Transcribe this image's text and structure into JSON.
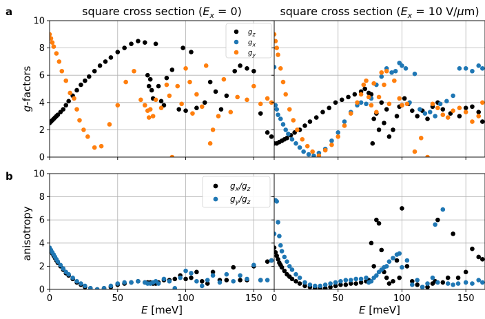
{
  "panel_labels": {
    "a": "a",
    "b": "b"
  },
  "titles": {
    "left": "square cross section (E_x = 0)",
    "right": "square cross section (E_x = 10 V/μm)"
  },
  "ylabels": {
    "top": "g-factors",
    "bottom": "anisotropy"
  },
  "xlabel": "E [meV]",
  "x_ticks": [
    "0",
    "50",
    "100",
    "150"
  ],
  "y_ticks_top": [
    "0",
    "2",
    "4",
    "6",
    "8",
    "10"
  ],
  "y_ticks_bottom": [
    "0",
    "2",
    "4",
    "6",
    "8",
    "10"
  ],
  "legend_top": [
    "g_z",
    "g_x",
    "g_y"
  ],
  "legend_bottom": [
    "g_x/g_z",
    "g_y/g_z"
  ],
  "colors": {
    "g_z": "#000000",
    "g_x": "#1f77b4",
    "g_y": "#ff7f0e",
    "ratio_x": "#000000",
    "ratio_y": "#1f77b4"
  },
  "chart_data": [
    {
      "type": "scatter",
      "title": "square cross section (E_x = 0)",
      "xlabel": "E [meV]",
      "ylabel": "g-factors",
      "xlim": [
        0,
        165
      ],
      "ylim": [
        0,
        10
      ],
      "grid": true,
      "legend": "top-right",
      "series": [
        {
          "name": "g_z",
          "color": "#000000",
          "x": [
            0,
            1,
            2,
            3,
            4,
            5,
            6,
            8,
            10,
            12,
            14,
            17,
            20,
            23,
            26,
            29,
            33,
            37,
            41,
            45,
            50,
            55,
            60,
            65,
            70,
            72,
            73,
            74,
            75,
            76,
            78,
            80,
            82,
            84,
            86,
            90,
            95,
            98,
            100,
            104,
            108,
            114,
            118,
            122,
            126,
            130,
            136,
            140,
            145,
            150,
            155,
            160,
            163
          ],
          "y": [
            2.5,
            2.6,
            2.7,
            2.8,
            2.9,
            3.0,
            3.1,
            3.3,
            3.5,
            3.8,
            4.1,
            4.5,
            4.9,
            5.3,
            5.6,
            5.9,
            6.3,
            6.7,
            7.0,
            7.3,
            7.7,
            8.0,
            8.3,
            8.5,
            8.4,
            6.0,
            5.2,
            5.7,
            4.9,
            4.3,
            8.3,
            5.2,
            4.1,
            3.8,
            5.8,
            6.4,
            3.5,
            8.0,
            3.4,
            7.7,
            3.6,
            4.0,
            5.5,
            4.8,
            3.5,
            4.5,
            6.3,
            6.7,
            6.5,
            6.3,
            3.2,
            1.8,
            1.5
          ]
        },
        {
          "name": "g_y",
          "color": "#ff7f0e",
          "x": [
            0,
            1,
            2,
            3,
            5,
            7,
            9,
            12,
            15,
            18,
            20,
            22,
            25,
            28,
            33,
            38,
            44,
            50,
            56,
            62,
            67,
            70,
            72,
            73,
            74,
            76,
            78,
            82,
            86,
            88,
            90,
            94,
            97,
            100,
            103,
            105,
            108,
            112,
            115,
            118,
            120,
            124,
            128,
            133,
            138,
            145,
            150,
            155,
            160,
            163
          ],
          "y": [
            9.0,
            8.7,
            8.4,
            8.1,
            7.6,
            7.0,
            6.3,
            5.6,
            4.7,
            4.3,
            3.5,
            2.7,
            2.0,
            1.5,
            0.7,
            0.8,
            2.4,
            3.8,
            5.5,
            6.3,
            4.2,
            3.8,
            3.4,
            2.9,
            3.5,
            3.0,
            4.2,
            3.6,
            5.3,
            4.5,
            0.0,
            5.2,
            3.9,
            6.5,
            5.5,
            3.2,
            4.6,
            3.7,
            6.7,
            1.0,
            2.0,
            3.0,
            5.7,
            3.3,
            4.4,
            4.2,
            5.2,
            3.9,
            4.3,
            4.0
          ]
        }
      ]
    },
    {
      "type": "scatter",
      "title": "square cross section (E_x = 10 V/μm)",
      "xlabel": "E [meV]",
      "ylabel": "",
      "xlim": [
        0,
        165
      ],
      "ylim": [
        0,
        10
      ],
      "grid": true,
      "series": [
        {
          "name": "g_z",
          "color": "#000000",
          "x": [
            0,
            2,
            4,
            6,
            8,
            10,
            13,
            16,
            20,
            24,
            28,
            33,
            38,
            43,
            48,
            53,
            58,
            63,
            68,
            71,
            74,
            76,
            77,
            78,
            80,
            82,
            84,
            86,
            88,
            90,
            93,
            96,
            98,
            100,
            102,
            105,
            108,
            112,
            116,
            120,
            124,
            128,
            132,
            138,
            145,
            150,
            155,
            160,
            163
          ],
          "y": [
            1.0,
            1.0,
            1.1,
            1.2,
            1.3,
            1.4,
            1.6,
            1.8,
            2.0,
            2.3,
            2.6,
            2.9,
            3.3,
            3.6,
            4.0,
            4.2,
            4.4,
            4.6,
            4.8,
            5.0,
            4.7,
            4.6,
            1.0,
            2.8,
            3.2,
            2.0,
            4.0,
            2.5,
            3.5,
            1.5,
            2.0,
            3.0,
            3.7,
            3.8,
            4.3,
            3.9,
            3.4,
            3.0,
            3.4,
            2.8,
            3.7,
            4.0,
            3.5,
            3.2,
            3.0,
            3.6,
            3.7,
            3.3,
            2.6
          ]
        },
        {
          "name": "g_x",
          "color": "#1f77b4",
          "x": [
            0,
            1,
            2,
            3,
            5,
            7,
            9,
            11,
            14,
            17,
            20,
            23,
            27,
            31,
            35,
            40,
            45,
            50,
            55,
            60,
            65,
            68,
            72,
            76,
            80,
            84,
            88,
            92,
            95,
            98,
            100,
            103,
            106,
            110,
            114,
            118,
            122,
            126,
            130,
            135,
            140,
            145,
            150,
            155,
            160,
            163
          ],
          "y": [
            6.6,
            3.8,
            3.5,
            3.1,
            2.8,
            2.4,
            2.0,
            1.7,
            1.3,
            1.0,
            0.7,
            0.4,
            0.2,
            0.1,
            0.3,
            0.6,
            1.2,
            1.8,
            2.6,
            3.3,
            3.8,
            4.0,
            3.9,
            4.3,
            5.3,
            5.9,
            6.5,
            6.2,
            6.3,
            6.9,
            6.7,
            6.5,
            4.0,
            6.1,
            3.5,
            3.2,
            3.3,
            3.0,
            3.9,
            4.1,
            4.5,
            6.5,
            6.5,
            6.3,
            6.7,
            6.5
          ]
        },
        {
          "name": "g_y",
          "color": "#ff7f0e",
          "x": [
            0,
            1,
            2,
            3,
            5,
            7,
            9,
            12,
            15,
            18,
            22,
            26,
            30,
            35,
            40,
            45,
            50,
            55,
            60,
            65,
            68,
            70,
            72,
            74,
            76,
            78,
            80,
            82,
            84,
            86,
            88,
            90,
            94,
            98,
            100,
            104,
            110,
            115,
            120,
            124,
            128,
            132,
            136,
            140,
            145,
            150,
            155,
            160,
            163
          ],
          "y": [
            9.0,
            8.5,
            8.0,
            7.5,
            6.5,
            5.5,
            4.6,
            3.5,
            2.7,
            2.0,
            1.3,
            0.8,
            0.4,
            0.1,
            0.5,
            0.9,
            1.5,
            2.3,
            3.2,
            4.0,
            4.6,
            5.3,
            5.6,
            4.4,
            3.8,
            5.4,
            3.3,
            4.4,
            6.2,
            5.3,
            6.3,
            3.9,
            5.6,
            4.3,
            3.8,
            3.9,
            0.4,
            1.4,
            0.0,
            3.9,
            3.6,
            3.1,
            2.9,
            3.4,
            3.6,
            3.3,
            2.6,
            3.0,
            4.0
          ]
        }
      ]
    },
    {
      "type": "scatter",
      "title": "",
      "xlabel": "E [meV]",
      "ylabel": "anisotropy",
      "xlim": [
        0,
        165
      ],
      "ylim": [
        0,
        10
      ],
      "grid": true,
      "legend": "top-right",
      "series": [
        {
          "name": "g_x/g_z",
          "color": "#000000",
          "x": [
            0,
            1,
            2,
            3,
            4,
            5,
            6,
            8,
            10,
            12,
            14,
            17,
            20,
            23,
            26,
            30,
            35,
            40,
            45,
            50,
            55,
            60,
            65,
            70,
            72,
            74,
            76,
            78,
            80,
            84,
            88,
            92,
            96,
            100,
            104,
            108,
            112,
            116,
            120,
            125,
            130,
            135,
            140,
            145,
            150,
            155,
            160,
            163
          ],
          "y": [
            3.5,
            3.3,
            3.1,
            2.9,
            2.7,
            2.5,
            2.3,
            2.0,
            1.7,
            1.4,
            1.2,
            0.9,
            0.6,
            0.4,
            0.2,
            0.1,
            0.0,
            0.1,
            0.2,
            0.4,
            0.5,
            0.6,
            0.7,
            0.6,
            0.6,
            0.6,
            0.5,
            0.5,
            0.6,
            0.8,
            0.8,
            0.9,
            1.2,
            0.9,
            1.0,
            1.5,
            0.7,
            0.5,
            1.5,
            0.8,
            0.8,
            1.9,
            0.8,
            0.8,
            2.0,
            0.8,
            2.4,
            2.5
          ]
        },
        {
          "name": "g_y/g_z",
          "color": "#1f77b4",
          "x": [
            0,
            1,
            2,
            3,
            4,
            5,
            6,
            8,
            10,
            12,
            14,
            17,
            20,
            23,
            26,
            30,
            35,
            40,
            45,
            50,
            55,
            60,
            65,
            70,
            72,
            74,
            76,
            78,
            80,
            84,
            88,
            92,
            96,
            100,
            104,
            108,
            112,
            116,
            120,
            125,
            130,
            135,
            140,
            145,
            150,
            155,
            160,
            163
          ],
          "y": [
            3.6,
            3.4,
            3.2,
            3.0,
            2.8,
            2.6,
            2.4,
            2.1,
            1.8,
            1.5,
            1.3,
            1.0,
            0.7,
            0.5,
            0.3,
            0.1,
            0.0,
            0.1,
            0.3,
            0.5,
            0.6,
            0.6,
            0.7,
            0.6,
            0.5,
            0.5,
            0.6,
            0.7,
            0.5,
            0.9,
            0.7,
            0.1,
            1.0,
            1.6,
            1.4,
            0.7,
            0.3,
            0.8,
            1.2,
            0.6,
            1.3,
            0.7,
            1.2,
            0.9,
            2.1,
            0.8,
            0.8,
            2.5
          ]
        }
      ]
    },
    {
      "type": "scatter",
      "title": "",
      "xlabel": "E [meV]",
      "ylabel": "",
      "xlim": [
        0,
        165
      ],
      "ylim": [
        0,
        10
      ],
      "grid": true,
      "series": [
        {
          "name": "g_x/g_z",
          "color": "#000000",
          "x": [
            0,
            1,
            2,
            3,
            4,
            5,
            6,
            8,
            10,
            12,
            14,
            17,
            20,
            24,
            28,
            32,
            36,
            40,
            44,
            48,
            52,
            56,
            60,
            64,
            68,
            72,
            74,
            76,
            78,
            80,
            82,
            84,
            86,
            88,
            90,
            93,
            96,
            98,
            100,
            104,
            108,
            112,
            116,
            120,
            124,
            126,
            128,
            132,
            136,
            140,
            144,
            150,
            155,
            160,
            163
          ],
          "y": [
            3.6,
            3.2,
            2.9,
            2.6,
            2.3,
            2.1,
            1.9,
            1.6,
            1.3,
            1.1,
            0.9,
            0.7,
            0.5,
            0.3,
            0.2,
            0.1,
            0.1,
            0.1,
            0.2,
            0.3,
            0.4,
            0.4,
            0.5,
            0.5,
            0.6,
            0.7,
            0.8,
            4.0,
            2.0,
            6.0,
            5.7,
            3.4,
            1.5,
            1.0,
            0.5,
            0.7,
            2.5,
            1.0,
            7.0,
            2.0,
            0.7,
            0.4,
            0.2,
            0.2,
            0.5,
            0.7,
            6.0,
            0.6,
            1.0,
            4.8,
            1.0,
            1.5,
            3.5,
            2.8,
            2.6
          ]
        },
        {
          "name": "g_y/g_z",
          "color": "#1f77b4",
          "x": [
            0,
            1,
            2,
            3,
            4,
            5,
            6,
            8,
            10,
            12,
            14,
            17,
            20,
            24,
            28,
            32,
            36,
            40,
            44,
            48,
            52,
            56,
            60,
            64,
            68,
            72,
            74,
            76,
            78,
            80,
            82,
            84,
            86,
            88,
            90,
            93,
            96,
            98,
            100,
            104,
            108,
            112,
            116,
            120,
            124,
            126,
            128,
            132,
            136,
            140,
            144,
            150,
            155,
            160,
            163
          ],
          "y": [
            4.8,
            7.7,
            7.6,
            5.8,
            4.6,
            3.8,
            3.3,
            2.8,
            2.4,
            2.0,
            1.7,
            1.3,
            1.0,
            0.6,
            0.4,
            0.3,
            0.3,
            0.4,
            0.5,
            0.6,
            0.7,
            0.8,
            0.8,
            0.9,
            0.9,
            1.0,
            0.6,
            0.7,
            1.0,
            1.2,
            1.5,
            1.7,
            1.9,
            2.0,
            2.4,
            2.7,
            3.0,
            3.1,
            1.9,
            2.5,
            0.4,
            0.8,
            0.2,
            0.5,
            1.0,
            5.6,
            0.6,
            6.9,
            0.5,
            0.4,
            0.5,
            0.6,
            0.5,
            0.8,
            0.6
          ]
        }
      ]
    }
  ]
}
